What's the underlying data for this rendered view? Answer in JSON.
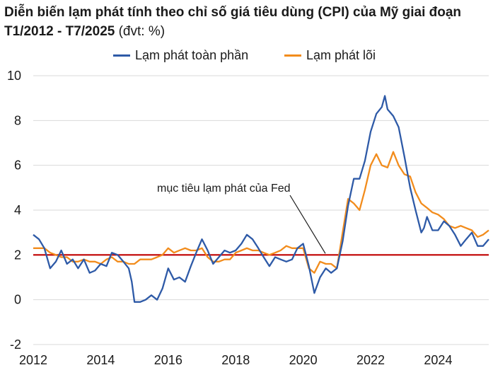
{
  "title_main": "Diễn biến lạm phát tính theo chỉ số giá tiêu dùng (CPI) của Mỹ giai đoạn T1/2012 - T7/2025",
  "title_unit": "(đvt: %)",
  "chart_data": {
    "type": "line",
    "title": "Diễn biến lạm phát tính theo chỉ số giá tiêu dùng (CPI) của Mỹ giai đoạn T1/2012 - T7/2025 (đvt: %)",
    "xlabel": "",
    "ylabel": "",
    "x_range": [
      2012.0,
      2025.5
    ],
    "ylim": [
      -2,
      10
    ],
    "y_ticks": [
      -2,
      0,
      2,
      4,
      6,
      8,
      10
    ],
    "x_ticks": [
      2012,
      2014,
      2016,
      2018,
      2020,
      2022,
      2024
    ],
    "grid": "horizontal",
    "legend_position": "top",
    "reference_line": {
      "value": 2,
      "label": "mục tiêu lạm phát của Fed",
      "color": "#c00000"
    },
    "series": [
      {
        "name": "Lạm phát toàn phần",
        "color": "#2e5aa7",
        "points": [
          [
            2012.0,
            2.9
          ],
          [
            2012.17,
            2.7
          ],
          [
            2012.33,
            2.3
          ],
          [
            2012.5,
            1.4
          ],
          [
            2012.67,
            1.7
          ],
          [
            2012.83,
            2.2
          ],
          [
            2013.0,
            1.6
          ],
          [
            2013.17,
            1.8
          ],
          [
            2013.33,
            1.4
          ],
          [
            2013.5,
            1.8
          ],
          [
            2013.67,
            1.2
          ],
          [
            2013.83,
            1.3
          ],
          [
            2014.0,
            1.6
          ],
          [
            2014.17,
            1.5
          ],
          [
            2014.33,
            2.1
          ],
          [
            2014.5,
            2.0
          ],
          [
            2014.67,
            1.7
          ],
          [
            2014.83,
            1.4
          ],
          [
            2014.92,
            0.8
          ],
          [
            2015.0,
            -0.1
          ],
          [
            2015.17,
            -0.1
          ],
          [
            2015.33,
            0.0
          ],
          [
            2015.5,
            0.2
          ],
          [
            2015.67,
            0.0
          ],
          [
            2015.83,
            0.5
          ],
          [
            2016.0,
            1.4
          ],
          [
            2016.17,
            0.9
          ],
          [
            2016.33,
            1.0
          ],
          [
            2016.5,
            0.8
          ],
          [
            2016.67,
            1.5
          ],
          [
            2016.83,
            2.1
          ],
          [
            2017.0,
            2.7
          ],
          [
            2017.17,
            2.2
          ],
          [
            2017.33,
            1.6
          ],
          [
            2017.5,
            1.9
          ],
          [
            2017.67,
            2.2
          ],
          [
            2017.83,
            2.1
          ],
          [
            2018.0,
            2.2
          ],
          [
            2018.17,
            2.5
          ],
          [
            2018.33,
            2.9
          ],
          [
            2018.5,
            2.7
          ],
          [
            2018.67,
            2.3
          ],
          [
            2018.83,
            1.9
          ],
          [
            2019.0,
            1.5
          ],
          [
            2019.17,
            1.9
          ],
          [
            2019.33,
            1.8
          ],
          [
            2019.5,
            1.7
          ],
          [
            2019.67,
            1.8
          ],
          [
            2019.83,
            2.3
          ],
          [
            2020.0,
            2.5
          ],
          [
            2020.17,
            1.5
          ],
          [
            2020.33,
            0.3
          ],
          [
            2020.5,
            1.0
          ],
          [
            2020.67,
            1.4
          ],
          [
            2020.83,
            1.2
          ],
          [
            2021.0,
            1.4
          ],
          [
            2021.17,
            2.6
          ],
          [
            2021.33,
            4.2
          ],
          [
            2021.5,
            5.4
          ],
          [
            2021.67,
            5.4
          ],
          [
            2021.83,
            6.2
          ],
          [
            2022.0,
            7.5
          ],
          [
            2022.17,
            8.3
          ],
          [
            2022.33,
            8.6
          ],
          [
            2022.42,
            9.1
          ],
          [
            2022.5,
            8.5
          ],
          [
            2022.67,
            8.2
          ],
          [
            2022.83,
            7.7
          ],
          [
            2023.0,
            6.4
          ],
          [
            2023.17,
            5.0
          ],
          [
            2023.33,
            4.0
          ],
          [
            2023.5,
            3.0
          ],
          [
            2023.58,
            3.2
          ],
          [
            2023.67,
            3.7
          ],
          [
            2023.83,
            3.1
          ],
          [
            2024.0,
            3.1
          ],
          [
            2024.17,
            3.5
          ],
          [
            2024.33,
            3.3
          ],
          [
            2024.5,
            2.9
          ],
          [
            2024.67,
            2.4
          ],
          [
            2024.83,
            2.7
          ],
          [
            2025.0,
            3.0
          ],
          [
            2025.17,
            2.4
          ],
          [
            2025.33,
            2.4
          ],
          [
            2025.5,
            2.7
          ]
        ]
      },
      {
        "name": "Lạm phát lõi",
        "color": "#f28c1c",
        "points": [
          [
            2012.0,
            2.3
          ],
          [
            2012.17,
            2.3
          ],
          [
            2012.33,
            2.3
          ],
          [
            2012.5,
            2.1
          ],
          [
            2012.67,
            2.0
          ],
          [
            2012.83,
            1.9
          ],
          [
            2013.0,
            1.9
          ],
          [
            2013.17,
            1.7
          ],
          [
            2013.33,
            1.7
          ],
          [
            2013.5,
            1.8
          ],
          [
            2013.67,
            1.7
          ],
          [
            2013.83,
            1.7
          ],
          [
            2014.0,
            1.6
          ],
          [
            2014.17,
            1.8
          ],
          [
            2014.33,
            1.9
          ],
          [
            2014.5,
            1.7
          ],
          [
            2014.67,
            1.7
          ],
          [
            2014.83,
            1.6
          ],
          [
            2015.0,
            1.6
          ],
          [
            2015.17,
            1.8
          ],
          [
            2015.33,
            1.8
          ],
          [
            2015.5,
            1.8
          ],
          [
            2015.67,
            1.9
          ],
          [
            2015.83,
            2.0
          ],
          [
            2016.0,
            2.3
          ],
          [
            2016.17,
            2.1
          ],
          [
            2016.33,
            2.2
          ],
          [
            2016.5,
            2.3
          ],
          [
            2016.67,
            2.2
          ],
          [
            2016.83,
            2.2
          ],
          [
            2017.0,
            2.3
          ],
          [
            2017.17,
            1.9
          ],
          [
            2017.33,
            1.7
          ],
          [
            2017.5,
            1.7
          ],
          [
            2017.67,
            1.8
          ],
          [
            2017.83,
            1.8
          ],
          [
            2018.0,
            2.1
          ],
          [
            2018.17,
            2.2
          ],
          [
            2018.33,
            2.3
          ],
          [
            2018.5,
            2.2
          ],
          [
            2018.67,
            2.2
          ],
          [
            2018.83,
            2.1
          ],
          [
            2019.0,
            2.0
          ],
          [
            2019.17,
            2.1
          ],
          [
            2019.33,
            2.2
          ],
          [
            2019.5,
            2.4
          ],
          [
            2019.67,
            2.3
          ],
          [
            2019.83,
            2.3
          ],
          [
            2020.0,
            2.3
          ],
          [
            2020.17,
            1.4
          ],
          [
            2020.33,
            1.2
          ],
          [
            2020.5,
            1.7
          ],
          [
            2020.67,
            1.6
          ],
          [
            2020.83,
            1.6
          ],
          [
            2021.0,
            1.4
          ],
          [
            2021.17,
            3.0
          ],
          [
            2021.33,
            4.5
          ],
          [
            2021.5,
            4.3
          ],
          [
            2021.67,
            4.0
          ],
          [
            2021.83,
            4.9
          ],
          [
            2022.0,
            6.0
          ],
          [
            2022.17,
            6.5
          ],
          [
            2022.33,
            6.0
          ],
          [
            2022.5,
            5.9
          ],
          [
            2022.67,
            6.6
          ],
          [
            2022.83,
            6.0
          ],
          [
            2023.0,
            5.6
          ],
          [
            2023.17,
            5.5
          ],
          [
            2023.33,
            4.8
          ],
          [
            2023.5,
            4.3
          ],
          [
            2023.67,
            4.1
          ],
          [
            2023.83,
            3.9
          ],
          [
            2024.0,
            3.8
          ],
          [
            2024.17,
            3.6
          ],
          [
            2024.33,
            3.3
          ],
          [
            2024.5,
            3.2
          ],
          [
            2024.67,
            3.3
          ],
          [
            2024.83,
            3.2
          ],
          [
            2025.0,
            3.1
          ],
          [
            2025.17,
            2.8
          ],
          [
            2025.33,
            2.9
          ],
          [
            2025.5,
            3.1
          ]
        ]
      }
    ]
  }
}
